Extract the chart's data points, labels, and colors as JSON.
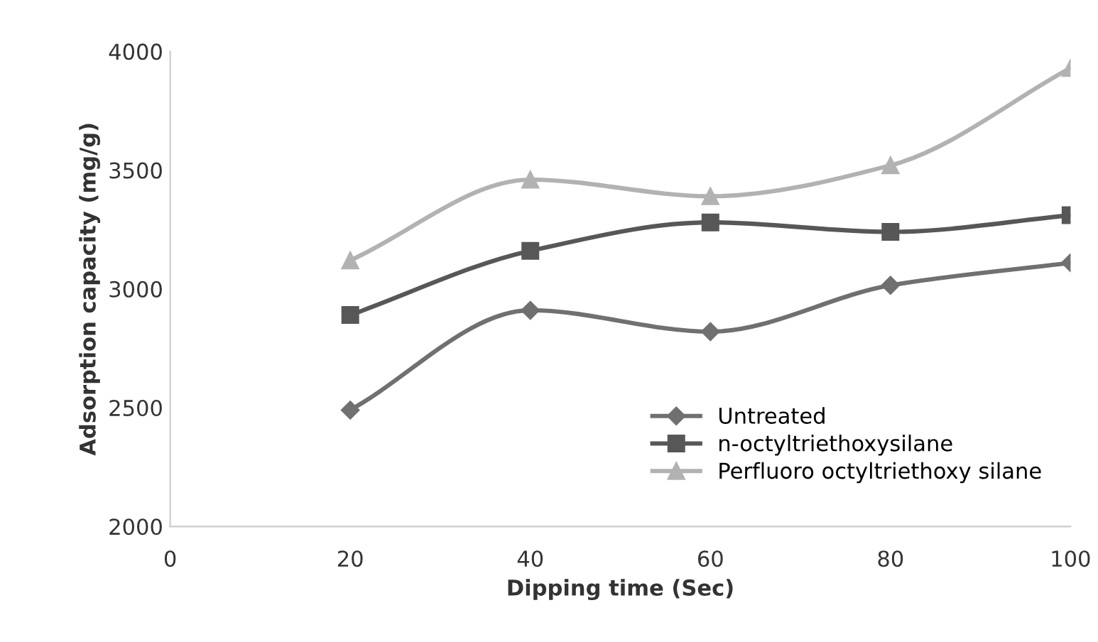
{
  "chart_data": {
    "type": "line",
    "xlabel": "Dipping time (Sec)",
    "ylabel": "Adsorption capacity (mg/g)",
    "x": [
      20,
      40,
      60,
      80,
      100
    ],
    "series": [
      {
        "name": "Untreated",
        "color": "#707070",
        "marker": "diamond",
        "values": [
          2490,
          2910,
          2820,
          3015,
          3110
        ]
      },
      {
        "name": "n-octyltriethoxysilane",
        "color": "#575757",
        "marker": "square",
        "values": [
          2890,
          3160,
          3280,
          3240,
          3310
        ]
      },
      {
        "name": "Perfluoro octyltriethoxy silane",
        "color": "#b2b2b2",
        "marker": "triangle",
        "values": [
          3120,
          3460,
          3390,
          3520,
          3930
        ]
      }
    ],
    "xlim": [
      0,
      100
    ],
    "xticks": [
      0,
      20,
      40,
      60,
      80,
      100
    ],
    "ylim": [
      2000,
      4000
    ],
    "yticks": [
      2000,
      2500,
      3000,
      3500,
      4000
    ],
    "grid": false,
    "legend": "bottom right",
    "line_style": "solid"
  }
}
